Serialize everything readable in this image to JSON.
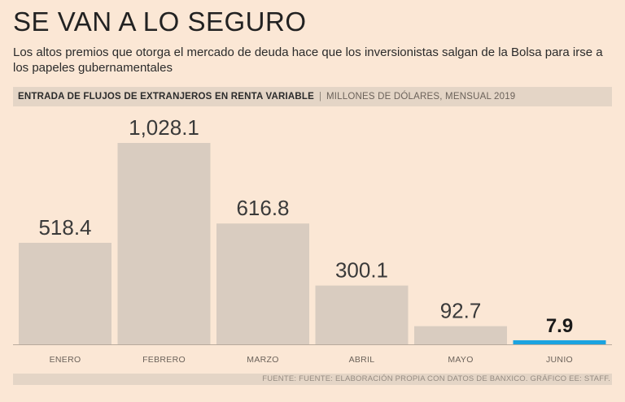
{
  "title": "SE VAN A LO SEGURO",
  "subtitle": "Los altos premios que otorga el mercado de deuda hace que los inversionistas salgan de la Bolsa para irse a los papeles gubernamentales",
  "header": {
    "bold": "ENTRADA DE FLUJOS DE EXTRANJEROS EN RENTA VARIABLE",
    "separator": "|",
    "light": "MILLONES DE DÓLARES, MENSUAL 2019"
  },
  "footer": "FUENTE: FUENTE: ELABORACIÓN PROPIA CON DATOS DE BANXICO. GRÁFICO EE: STAFF.",
  "colors": {
    "background": "#fbe7d5",
    "bar": "#d9ccc0",
    "highlight": "#1ca3e0",
    "band": "#e4d5c6"
  },
  "chart_data": {
    "type": "bar",
    "title": "ENTRADA DE FLUJOS DE EXTRANJEROS EN RENTA VARIABLE",
    "ylabel": "MILLONES DE DÓLARES, MENSUAL 2019",
    "xlabel": "",
    "categories": [
      "ENERO",
      "FEBRERO",
      "MARZO",
      "ABRIL",
      "MAYO",
      "JUNIO"
    ],
    "values": [
      518.4,
      1028.1,
      616.8,
      300.1,
      92.7,
      7.9
    ],
    "labels": [
      "518.4",
      "1,028.1",
      "616.8",
      "300.1",
      "92.7",
      "7.9"
    ],
    "highlight_index": 5,
    "ylim": [
      0,
      1028.1
    ],
    "grid": false
  }
}
